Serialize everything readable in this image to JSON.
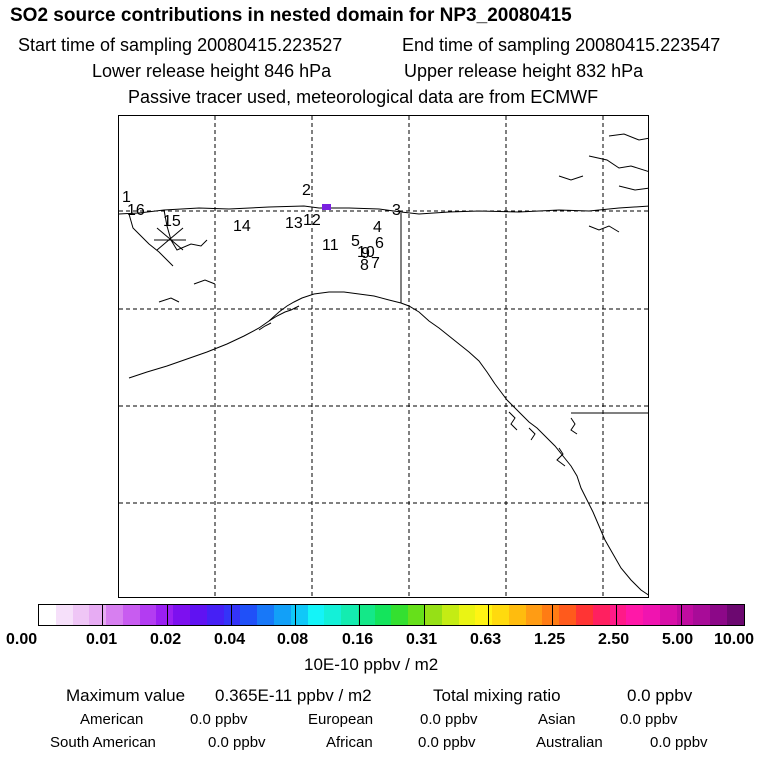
{
  "header": {
    "title": "SO2 source contributions in nested domain for NP3_20080415",
    "start_time": "Start time of sampling 20080415.223527",
    "end_time": "End time of sampling 20080415.223547",
    "lower_height": "Lower release height  846 hPa",
    "upper_height": "Upper release height  832 hPa",
    "note": "Passive tracer used, meteorological data are from ECMWF"
  },
  "map": {
    "site_labels": [
      "1",
      "16",
      "15",
      "14",
      "13",
      "12",
      "2",
      "11",
      "3",
      "4",
      "5",
      "6",
      "10",
      "9",
      "8",
      "7"
    ],
    "source_color": "#7a20e0"
  },
  "colorbar": {
    "colors": [
      "#ffffff",
      "#f6e0fa",
      "#efc6f6",
      "#e7acf3",
      "#d77ff0",
      "#c85cf0",
      "#b33cf2",
      "#9a1ff2",
      "#7d10ef",
      "#6012f2",
      "#4620f5",
      "#3434f8",
      "#2050f8",
      "#1878f8",
      "#12a0f8",
      "#10c8f8",
      "#14f4f8",
      "#14f0d8",
      "#14ecb0",
      "#14e888",
      "#14e45c",
      "#34e030",
      "#66e01a",
      "#96e016",
      "#c4ec14",
      "#eaf414",
      "#fff414",
      "#ffda0e",
      "#ffbc0e",
      "#ff9c14",
      "#ff7c14",
      "#ff5a1c",
      "#ff3434",
      "#ff2060",
      "#ff1a88",
      "#ff18a8",
      "#f014b0",
      "#d810a8",
      "#c00ca0",
      "#a80c98",
      "#8c0888",
      "#6c0870"
    ],
    "labels": [
      "0.00",
      "0.01",
      "0.02",
      "0.04",
      "0.08",
      "0.16",
      "0.31",
      "0.63",
      "1.25",
      "2.50",
      "5.00",
      "10.00"
    ],
    "units": "10E-10 ppbv / m2"
  },
  "summary": {
    "max_label": "Maximum value",
    "max_value": "0.365E-11 ppbv / m2",
    "total_label": "Total mixing ratio",
    "total_value": "0.0 ppbv",
    "regions": [
      {
        "name": "American",
        "value": "0.0 ppbv"
      },
      {
        "name": "European",
        "value": "0.0 ppbv"
      },
      {
        "name": "Asian",
        "value": "0.0 ppbv"
      },
      {
        "name": "South American",
        "value": "0.0 ppbv"
      },
      {
        "name": "African",
        "value": "0.0 ppbv"
      },
      {
        "name": "Australian",
        "value": "0.0 ppbv"
      }
    ]
  }
}
